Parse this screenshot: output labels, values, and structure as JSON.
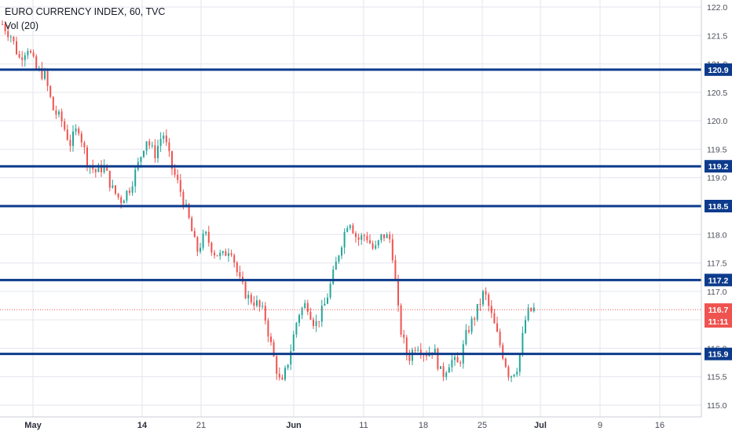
{
  "header": {
    "symbol_line": "EURO CURRENCY INDEX, 60, TVC",
    "volume_line": "Vol (20)"
  },
  "chart_data": {
    "type": "candlestick",
    "title": "EURO CURRENCY INDEX, 60, TVC",
    "indicator": "Vol (20)",
    "ylim": [
      114.9,
      122.1
    ],
    "y_ticks": [
      "122.0",
      "121.5",
      "121.0",
      "120.5",
      "120.0",
      "119.5",
      "119.0",
      "118.5",
      "118.0",
      "117.5",
      "117.0",
      "116.5",
      "116.0",
      "115.5",
      "115.0"
    ],
    "x_ticks": [
      {
        "label": "May",
        "bold": true
      },
      {
        "label": "14",
        "bold": true
      },
      {
        "label": "21",
        "bold": false
      },
      {
        "label": "Jun",
        "bold": true
      },
      {
        "label": "11",
        "bold": false
      },
      {
        "label": "18",
        "bold": false
      },
      {
        "label": "25",
        "bold": false
      },
      {
        "label": "Jul",
        "bold": true
      },
      {
        "label": "9",
        "bold": false
      },
      {
        "label": "16",
        "bold": false
      }
    ],
    "horizontal_levels": [
      {
        "label": "120.9",
        "value": 120.9
      },
      {
        "label": "119.2",
        "value": 119.2
      },
      {
        "label": "118.5",
        "value": 118.5
      },
      {
        "label": "117.2",
        "value": 117.2
      },
      {
        "label": "115.9",
        "value": 115.9
      }
    ],
    "current_price": {
      "label": "116.7",
      "value": 116.68,
      "countdown": "11:11"
    },
    "price_path": [
      121.7,
      121.5,
      121.1,
      121.3,
      120.9,
      120.8,
      120.2,
      120.0,
      119.6,
      119.9,
      119.3,
      119.1,
      119.2,
      118.8,
      118.6,
      118.8,
      119.2,
      119.7,
      119.4,
      119.8,
      119.2,
      118.8,
      118.3,
      117.7,
      118.0,
      117.7,
      117.6,
      117.8,
      117.2,
      116.9,
      116.8,
      116.6,
      115.9,
      115.3,
      115.9,
      116.6,
      116.8,
      116.4,
      116.7,
      117.2,
      117.8,
      118.3,
      117.9,
      118.0,
      117.7,
      118.0,
      117.9,
      116.4,
      115.8,
      116.1,
      115.9,
      116.0,
      115.5,
      115.8,
      115.7,
      116.3,
      116.6,
      117.0,
      116.5,
      116.0,
      115.5,
      115.7,
      116.6,
      116.7
    ],
    "colors": {
      "up": "#26a69a",
      "down": "#ef5350",
      "level": "#0d3b8c",
      "current": "#ef5350",
      "grid": "#e3e6ee"
    }
  }
}
